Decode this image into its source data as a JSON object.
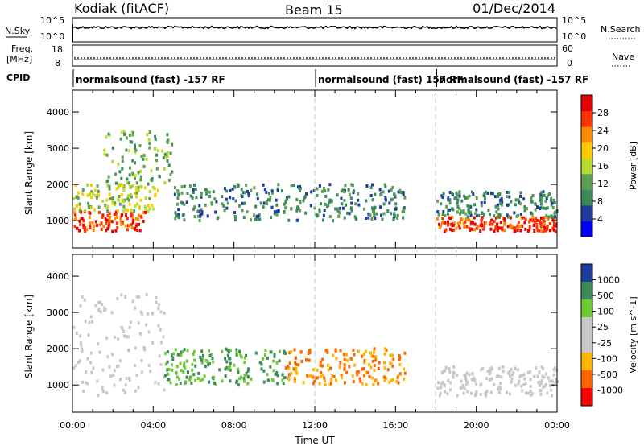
{
  "header": {
    "station": "Kodiak (fitACF)",
    "beam": "Beam 15",
    "date": "01/Dec/2014"
  },
  "strip_labels": {
    "nsky": "N.Sky",
    "nsearch": "N.Search",
    "freq_line1": "Freq.",
    "freq_line2": "[MHz]",
    "nave": "Nave",
    "cpid": "CPID",
    "nsky_ticks": [
      "10^5",
      "10^0"
    ],
    "nsearch_ticks": [
      "10^5",
      "10^0"
    ],
    "freq_ticks": [
      "18",
      "8"
    ],
    "nave_ticks": [
      "60",
      "0"
    ]
  },
  "cpid_segments": [
    {
      "label": "normalsound (fast) -157 RF",
      "start_hour": 0
    },
    {
      "label": "normalsound (fast) 157 RF",
      "start_hour": 12
    },
    {
      "label": "normalsound (fast) -157 RF",
      "start_hour": 18
    }
  ],
  "colors": {
    "power": [
      "#0000ff",
      "#1e3ca0",
      "#3c8c5a",
      "#5aa050",
      "#b4dc28",
      "#ffc800",
      "#ff8c00",
      "#ff3200",
      "#e60000"
    ],
    "velocity": [
      "#ff0000",
      "#ff6400",
      "#ffb400",
      "#c8c8c8",
      "#c8c8c8",
      "#6ecc32",
      "#3c8c5a",
      "#1e3ca0"
    ],
    "ground_scatter": "#c8c8c8"
  },
  "chart_data": [
    {
      "type": "heatmap",
      "title": "Power",
      "xlabel": "Time UT",
      "ylabel": "Slant Range [km]",
      "xlim": [
        0,
        24
      ],
      "ylim": [
        250,
        4600
      ],
      "x_ticks": [
        "00:00",
        "04:00",
        "08:00",
        "12:00",
        "16:00",
        "20:00",
        "00:00"
      ],
      "y_ticks": [
        1000,
        2000,
        3000,
        4000
      ],
      "colorbar": {
        "label": "Power [dB]",
        "ticks": [
          4,
          8,
          12,
          16,
          20,
          24,
          28
        ],
        "range": [
          0,
          32
        ]
      },
      "features": [
        {
          "t_start": 0,
          "t_end": 3.6,
          "r_low": 700,
          "r_high": 1250,
          "level": 28
        },
        {
          "t_start": 0,
          "t_end": 4.2,
          "r_low": 1250,
          "r_high": 2000,
          "level": 16
        },
        {
          "t_start": 1.5,
          "t_end": 5,
          "r_low": 2000,
          "r_high": 3500,
          "level": 12
        },
        {
          "t_start": 5,
          "t_end": 16.5,
          "r_low": 1000,
          "r_high": 2000,
          "level": 8
        },
        {
          "t_start": 18,
          "t_end": 24,
          "r_low": 700,
          "r_high": 1100,
          "level": 28
        },
        {
          "t_start": 18,
          "t_end": 24,
          "r_low": 1100,
          "r_high": 1800,
          "level": 8
        }
      ]
    },
    {
      "type": "heatmap",
      "title": "Velocity",
      "xlabel": "Time UT",
      "ylabel": "Slant Range [km]",
      "xlim": [
        0,
        24
      ],
      "ylim": [
        250,
        4600
      ],
      "x_ticks": [
        "00:00",
        "04:00",
        "08:00",
        "12:00",
        "16:00",
        "20:00",
        "00:00"
      ],
      "y_ticks": [
        1000,
        2000,
        3000,
        4000
      ],
      "colorbar": {
        "label": "Velocity [m s^-1]",
        "ticks": [
          "1000",
          "500",
          "100",
          "25",
          "-25",
          "-100",
          "-500",
          "-1000"
        ]
      },
      "features": [
        {
          "t_start": 0,
          "t_end": 4.5,
          "r_low": 700,
          "r_high": 3500,
          "value": "ground scatter"
        },
        {
          "t_start": 4.5,
          "t_end": 10.5,
          "r_low": 1000,
          "r_high": 2000,
          "value": 100
        },
        {
          "t_start": 10.5,
          "t_end": 16.5,
          "r_low": 1000,
          "r_high": 2000,
          "value": -100
        },
        {
          "t_start": 18,
          "t_end": 24,
          "r_low": 700,
          "r_high": 1500,
          "value": "ground scatter"
        }
      ]
    }
  ]
}
